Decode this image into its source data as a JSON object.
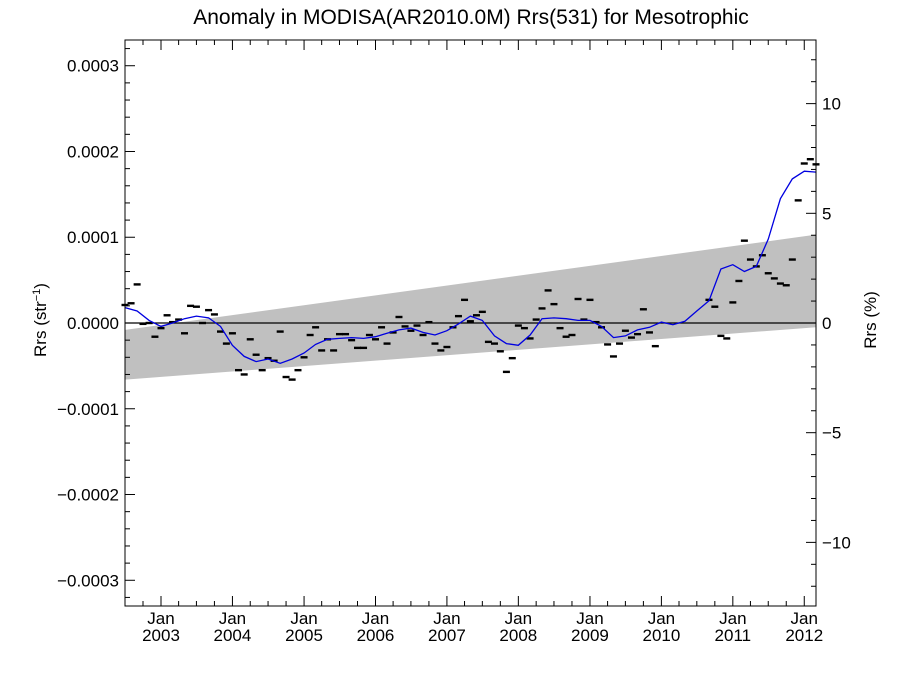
{
  "chart_data": {
    "type": "scatter",
    "title": "Anomaly in MODISA(AR2010.0M) Rrs(531) for Mesotrophic",
    "ylabel": "Rrs (str",
    "ylabel_sup": "−1",
    "ylabel_close": ")",
    "y2label": "Rrs (%)",
    "xlim": [
      "2002-07-01",
      "2012-03-01"
    ],
    "ylim": [
      -0.00033,
      0.00033
    ],
    "y2lim": [
      -12.9,
      12.9
    ],
    "grid": false,
    "yticks": [
      {
        "value": 0.0003,
        "label": "0.0003"
      },
      {
        "value": 0.0002,
        "label": "0.0002"
      },
      {
        "value": 0.0001,
        "label": "0.0001"
      },
      {
        "value": 0.0,
        "label": "0.0000"
      },
      {
        "value": -0.0001,
        "label": "−0.0001"
      },
      {
        "value": -0.0002,
        "label": "−0.0002"
      },
      {
        "value": -0.0003,
        "label": "−0.0003"
      }
    ],
    "y2ticks": [
      {
        "value": 10,
        "label": "10"
      },
      {
        "value": 5,
        "label": "5"
      },
      {
        "value": 0,
        "label": "0"
      },
      {
        "value": -5,
        "label": "−5"
      },
      {
        "value": -10,
        "label": "−10"
      }
    ],
    "xticks": [
      {
        "date": "2003-01-01",
        "month": "Jan",
        "year": "2003"
      },
      {
        "date": "2004-01-01",
        "month": "Jan",
        "year": "2004"
      },
      {
        "date": "2005-01-01",
        "month": "Jan",
        "year": "2005"
      },
      {
        "date": "2006-01-01",
        "month": "Jan",
        "year": "2006"
      },
      {
        "date": "2007-01-01",
        "month": "Jan",
        "year": "2007"
      },
      {
        "date": "2008-01-01",
        "month": "Jan",
        "year": "2008"
      },
      {
        "date": "2009-01-01",
        "month": "Jan",
        "year": "2009"
      },
      {
        "date": "2010-01-01",
        "month": "Jan",
        "year": "2010"
      },
      {
        "date": "2011-01-01",
        "month": "Jan",
        "year": "2011"
      },
      {
        "date": "2012-01-01",
        "month": "Jan",
        "year": "2012"
      }
    ],
    "band": {
      "start": {
        "date": "2002-07-01",
        "lower": -6.6e-05,
        "upper": -8e-06
      },
      "end": {
        "date": "2012-03-01",
        "lower": -5e-06,
        "upper": 0.000103
      },
      "color": "#c0c0c0"
    },
    "points": [
      {
        "date": "2002-07-01",
        "value": 2.1e-05
      },
      {
        "date": "2002-08-01",
        "value": 2.3e-05
      },
      {
        "date": "2002-09-01",
        "value": 4.5e-05
      },
      {
        "date": "2002-10-01",
        "value": -1e-06
      },
      {
        "date": "2002-11-01",
        "value": 0.0
      },
      {
        "date": "2002-12-01",
        "value": -1.6e-05
      },
      {
        "date": "2003-01-01",
        "value": -6e-06
      },
      {
        "date": "2003-02-01",
        "value": 9e-06
      },
      {
        "date": "2003-03-01",
        "value": 1e-06
      },
      {
        "date": "2003-04-01",
        "value": 4e-06
      },
      {
        "date": "2003-05-01",
        "value": -1.2e-05
      },
      {
        "date": "2003-06-01",
        "value": 2e-05
      },
      {
        "date": "2003-07-01",
        "value": 1.9e-05
      },
      {
        "date": "2003-08-01",
        "value": 0.0
      },
      {
        "date": "2003-09-01",
        "value": 1.5e-05
      },
      {
        "date": "2003-10-01",
        "value": 1e-05
      },
      {
        "date": "2003-11-01",
        "value": -1e-05
      },
      {
        "date": "2003-12-01",
        "value": -2.4e-05
      },
      {
        "date": "2004-01-01",
        "value": -1.2e-05
      },
      {
        "date": "2004-02-01",
        "value": -5.5e-05
      },
      {
        "date": "2004-03-01",
        "value": -6e-05
      },
      {
        "date": "2004-04-01",
        "value": -1.9e-05
      },
      {
        "date": "2004-05-01",
        "value": -3.7e-05
      },
      {
        "date": "2004-06-01",
        "value": -5.5e-05
      },
      {
        "date": "2004-07-01",
        "value": -4.1e-05
      },
      {
        "date": "2004-08-01",
        "value": -4.4e-05
      },
      {
        "date": "2004-09-01",
        "value": -1e-05
      },
      {
        "date": "2004-10-01",
        "value": -6.3e-05
      },
      {
        "date": "2004-11-01",
        "value": -6.6e-05
      },
      {
        "date": "2004-12-01",
        "value": -5.5e-05
      },
      {
        "date": "2005-01-01",
        "value": -4e-05
      },
      {
        "date": "2005-02-01",
        "value": -1.4e-05
      },
      {
        "date": "2005-03-01",
        "value": -5e-06
      },
      {
        "date": "2005-04-01",
        "value": -3.2e-05
      },
      {
        "date": "2005-05-01",
        "value": -1.9e-05
      },
      {
        "date": "2005-06-01",
        "value": -3.2e-05
      },
      {
        "date": "2005-07-01",
        "value": -1.3e-05
      },
      {
        "date": "2005-08-01",
        "value": -1.3e-05
      },
      {
        "date": "2005-09-01",
        "value": -2e-05
      },
      {
        "date": "2005-10-01",
        "value": -2.9e-05
      },
      {
        "date": "2005-11-01",
        "value": -2.9e-05
      },
      {
        "date": "2005-12-01",
        "value": -1.4e-05
      },
      {
        "date": "2006-01-01",
        "value": -1.9e-05
      },
      {
        "date": "2006-02-01",
        "value": -5e-06
      },
      {
        "date": "2006-03-01",
        "value": -2.4e-05
      },
      {
        "date": "2006-04-01",
        "value": -1.1e-05
      },
      {
        "date": "2006-05-01",
        "value": 7e-06
      },
      {
        "date": "2006-06-01",
        "value": -4e-06
      },
      {
        "date": "2006-07-01",
        "value": -9e-06
      },
      {
        "date": "2006-08-01",
        "value": -3e-06
      },
      {
        "date": "2006-09-01",
        "value": -1.4e-05
      },
      {
        "date": "2006-10-01",
        "value": 1e-06
      },
      {
        "date": "2006-11-01",
        "value": -2.4e-05
      },
      {
        "date": "2006-12-01",
        "value": -3.2e-05
      },
      {
        "date": "2007-01-01",
        "value": -2.8e-05
      },
      {
        "date": "2007-02-01",
        "value": -5e-06
      },
      {
        "date": "2007-03-01",
        "value": 8e-06
      },
      {
        "date": "2007-04-01",
        "value": 2.7e-05
      },
      {
        "date": "2007-05-01",
        "value": 2e-06
      },
      {
        "date": "2007-06-01",
        "value": 9e-06
      },
      {
        "date": "2007-07-01",
        "value": 1.3e-05
      },
      {
        "date": "2007-08-01",
        "value": -2.2e-05
      },
      {
        "date": "2007-09-01",
        "value": -2.4e-05
      },
      {
        "date": "2007-10-01",
        "value": -3.3e-05
      },
      {
        "date": "2007-11-01",
        "value": -5.7e-05
      },
      {
        "date": "2007-12-01",
        "value": -4.1e-05
      },
      {
        "date": "2008-01-01",
        "value": -3e-06
      },
      {
        "date": "2008-02-01",
        "value": -6e-06
      },
      {
        "date": "2008-03-01",
        "value": -1.8e-05
      },
      {
        "date": "2008-04-01",
        "value": 4e-06
      },
      {
        "date": "2008-05-01",
        "value": 1.7e-05
      },
      {
        "date": "2008-06-01",
        "value": 3.8e-05
      },
      {
        "date": "2008-07-01",
        "value": 2.2e-05
      },
      {
        "date": "2008-08-01",
        "value": -6e-06
      },
      {
        "date": "2008-09-01",
        "value": -1.6e-05
      },
      {
        "date": "2008-10-01",
        "value": -1.4e-05
      },
      {
        "date": "2008-11-01",
        "value": 2.8e-05
      },
      {
        "date": "2008-12-01",
        "value": 4e-06
      },
      {
        "date": "2009-01-01",
        "value": 2.7e-05
      },
      {
        "date": "2009-02-01",
        "value": 1e-06
      },
      {
        "date": "2009-03-01",
        "value": -5e-06
      },
      {
        "date": "2009-04-01",
        "value": -2.5e-05
      },
      {
        "date": "2009-05-01",
        "value": -3.9e-05
      },
      {
        "date": "2009-06-01",
        "value": -2.4e-05
      },
      {
        "date": "2009-07-01",
        "value": -9e-06
      },
      {
        "date": "2009-08-01",
        "value": -1.7e-05
      },
      {
        "date": "2009-09-01",
        "value": -1.3e-05
      },
      {
        "date": "2009-10-01",
        "value": 1.6e-05
      },
      {
        "date": "2009-11-01",
        "value": -1.1e-05
      },
      {
        "date": "2009-12-01",
        "value": -2.7e-05
      },
      {
        "date": "2010-01-01",
        "value": 2.7e-05
      },
      {
        "date": "2010-02-01",
        "value": 1.9e-05
      },
      {
        "date": "2010-03-01",
        "value": -1.5e-05
      },
      {
        "date": "2010-04-01",
        "value": -1.8e-05
      },
      {
        "date": "2010-05-01",
        "value": 2.4e-05
      },
      {
        "date": "2010-06-01",
        "value": 4.9e-05
      },
      {
        "date": "2010-07-01",
        "value": 9.6e-05
      },
      {
        "date": "2010-08-01",
        "value": 7.4e-05
      },
      {
        "date": "2010-09-01",
        "value": 6.6e-05
      },
      {
        "date": "2010-10-01",
        "value": 7.9e-05
      },
      {
        "date": "2010-11-01",
        "value": 5.8e-05
      },
      {
        "date": "2010-12-01",
        "value": 5.2e-05
      },
      {
        "date": "2011-01-01",
        "value": 4.6e-05
      },
      {
        "date": "2011-02-01",
        "value": 4.4e-05
      },
      {
        "date": "2011-03-01",
        "value": 7.4e-05
      },
      {
        "date": "2011-04-01",
        "value": 0.000143
      },
      {
        "date": "2011-05-01",
        "value": 0.000186
      },
      {
        "date": "2011-06-01",
        "value": 0.000191
      },
      {
        "date": "2011-07-01",
        "value": 0.000185
      },
      {
        "date": "2011-08-01",
        "value": 0.000193
      }
    ],
    "points_shift": {
      "from": "2010-01-01",
      "months": 8
    },
    "line": {
      "color": "#0000e0",
      "points": [
        {
          "date": "2002-07-01",
          "value": 1.8e-05
        },
        {
          "date": "2002-09-01",
          "value": 1.4e-05
        },
        {
          "date": "2002-11-01",
          "value": 3e-06
        },
        {
          "date": "2003-01-01",
          "value": -4e-06
        },
        {
          "date": "2003-03-01",
          "value": 0.0
        },
        {
          "date": "2003-05-01",
          "value": 5e-06
        },
        {
          "date": "2003-07-01",
          "value": 8e-06
        },
        {
          "date": "2003-09-01",
          "value": 6e-06
        },
        {
          "date": "2003-11-01",
          "value": -4e-06
        },
        {
          "date": "2004-01-01",
          "value": -2.6e-05
        },
        {
          "date": "2004-03-01",
          "value": -3.9e-05
        },
        {
          "date": "2004-05-01",
          "value": -4.5e-05
        },
        {
          "date": "2004-07-01",
          "value": -4.2e-05
        },
        {
          "date": "2004-09-01",
          "value": -4.7e-05
        },
        {
          "date": "2004-11-01",
          "value": -4.2e-05
        },
        {
          "date": "2005-01-01",
          "value": -3.5e-05
        },
        {
          "date": "2005-03-01",
          "value": -2.5e-05
        },
        {
          "date": "2005-05-01",
          "value": -1.9e-05
        },
        {
          "date": "2005-07-01",
          "value": -1.8e-05
        },
        {
          "date": "2005-09-01",
          "value": -1.7e-05
        },
        {
          "date": "2005-11-01",
          "value": -1.8e-05
        },
        {
          "date": "2006-01-01",
          "value": -1.6e-05
        },
        {
          "date": "2006-03-01",
          "value": -1.2e-05
        },
        {
          "date": "2006-05-01",
          "value": -8e-06
        },
        {
          "date": "2006-07-01",
          "value": -6e-06
        },
        {
          "date": "2006-09-01",
          "value": -1.1e-05
        },
        {
          "date": "2006-11-01",
          "value": -1.4e-05
        },
        {
          "date": "2007-01-01",
          "value": -9e-06
        },
        {
          "date": "2007-03-01",
          "value": -1e-06
        },
        {
          "date": "2007-05-01",
          "value": 8e-06
        },
        {
          "date": "2007-07-01",
          "value": 3e-06
        },
        {
          "date": "2007-09-01",
          "value": -1.5e-05
        },
        {
          "date": "2007-11-01",
          "value": -2.4e-05
        },
        {
          "date": "2008-01-01",
          "value": -2.6e-05
        },
        {
          "date": "2008-03-01",
          "value": -1.4e-05
        },
        {
          "date": "2008-05-01",
          "value": 5e-06
        },
        {
          "date": "2008-07-01",
          "value": 6e-06
        },
        {
          "date": "2008-09-01",
          "value": 5e-06
        },
        {
          "date": "2008-11-01",
          "value": 3e-06
        },
        {
          "date": "2009-01-01",
          "value": 3e-06
        },
        {
          "date": "2009-03-01",
          "value": -4e-06
        },
        {
          "date": "2009-05-01",
          "value": -1.7e-05
        },
        {
          "date": "2009-07-01",
          "value": -1.5e-05
        },
        {
          "date": "2009-09-01",
          "value": -8e-06
        },
        {
          "date": "2009-11-01",
          "value": -5e-06
        },
        {
          "date": "2010-01-01",
          "value": 1e-06
        },
        {
          "date": "2010-03-01",
          "value": -2e-06
        },
        {
          "date": "2010-05-01",
          "value": 2e-06
        },
        {
          "date": "2010-07-01",
          "value": 1.4e-05
        },
        {
          "date": "2010-09-01",
          "value": 2.6e-05
        },
        {
          "date": "2010-11-01",
          "value": 6.3e-05
        },
        {
          "date": "2011-01-01",
          "value": 6.8e-05
        },
        {
          "date": "2011-03-01",
          "value": 6e-05
        },
        {
          "date": "2011-05-01",
          "value": 6.6e-05
        },
        {
          "date": "2011-07-01",
          "value": 9.8e-05
        },
        {
          "date": "2011-09-01",
          "value": 0.000145
        },
        {
          "date": "2011-11-01",
          "value": 0.000168
        },
        {
          "date": "2012-01-01",
          "value": 0.000177
        },
        {
          "date": "2012-03-01",
          "value": 0.000176
        }
      ]
    }
  }
}
